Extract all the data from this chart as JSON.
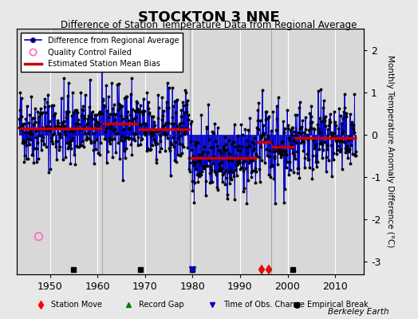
{
  "title": "STOCKTON 3 NNE",
  "subtitle": "Difference of Station Temperature Data from Regional Average",
  "ylabel": "Monthly Temperature Anomaly Difference (°C)",
  "xlabel_years": [
    1950,
    1960,
    1970,
    1980,
    1990,
    2000,
    2010
  ],
  "ylim": [
    -3.3,
    2.5
  ],
  "yticks": [
    -3,
    -2,
    -1,
    0,
    1,
    2
  ],
  "xlim": [
    1943,
    2016
  ],
  "background_color": "#e8e8e8",
  "plot_bg_color": "#d8d8d8",
  "grid_color": "#ffffff",
  "line_color": "#0000cc",
  "marker_color": "#000000",
  "bias_color": "#cc0000",
  "qc_color": "#ff69b4",
  "watermark": "Berkeley Earth",
  "seed": 42,
  "segments": [
    {
      "start": 1943.5,
      "end": 1961.0,
      "bias": 0.15
    },
    {
      "start": 1961.0,
      "end": 1968.5,
      "bias": 0.25
    },
    {
      "start": 1968.5,
      "end": 1979.5,
      "bias": 0.12
    },
    {
      "start": 1979.5,
      "end": 1993.5,
      "bias": -0.55
    },
    {
      "start": 1993.5,
      "end": 1996.5,
      "bias": -0.18
    },
    {
      "start": 1996.5,
      "end": 2001.5,
      "bias": -0.28
    },
    {
      "start": 2001.5,
      "end": 2014.5,
      "bias": -0.08
    }
  ],
  "station_moves": [
    1994.5,
    1996.0
  ],
  "empirical_breaks": [
    1955.0,
    1969.0,
    1980.0,
    2001.0
  ],
  "obs_change": [
    1980.0
  ],
  "qc_failed_x": [
    1947.5
  ],
  "qc_failed_y": [
    -2.4
  ],
  "vertical_lines": [
    1961.0,
    1979.5,
    1996.5
  ]
}
